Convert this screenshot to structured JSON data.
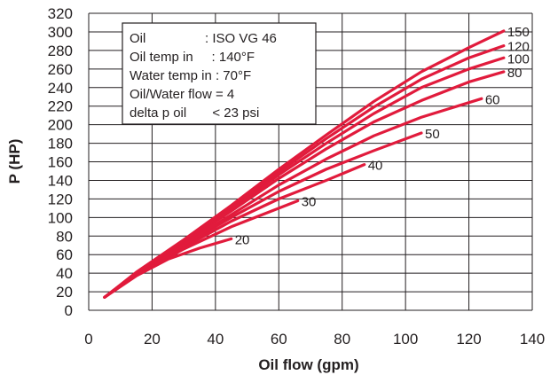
{
  "chart_data": {
    "type": "line",
    "xlabel": "Oil flow (gpm)",
    "ylabel": "P (HP)",
    "xlim": [
      0,
      140
    ],
    "ylim": [
      0,
      320
    ],
    "x_ticks": [
      0,
      20,
      40,
      60,
      80,
      100,
      120,
      140
    ],
    "y_ticks": [
      0,
      20,
      40,
      60,
      80,
      100,
      120,
      140,
      160,
      180,
      200,
      220,
      240,
      260,
      280,
      300,
      320
    ],
    "grid": true,
    "line_color": "#e11b3c",
    "legend_box": {
      "placement": "top-left",
      "lines": [
        "Oil                : ISO VG 46",
        "Oil temp in     : 140°F",
        "Water temp in : 70°F",
        "Oil/Water flow = 4",
        "delta p oil       < 23 psi"
      ]
    },
    "series": [
      {
        "name": "20",
        "x": [
          5,
          15,
          25,
          35,
          45
        ],
        "y": [
          14,
          37,
          55,
          67,
          77
        ]
      },
      {
        "name": "30",
        "x": [
          5,
          15,
          30,
          45,
          60,
          66
        ],
        "y": [
          14,
          38,
          66,
          90,
          110,
          118
        ]
      },
      {
        "name": "40",
        "x": [
          5,
          15,
          30,
          45,
          60,
          75,
          87
        ],
        "y": [
          14,
          38,
          68,
          96,
          120,
          140,
          157
        ]
      },
      {
        "name": "50",
        "x": [
          5,
          15,
          30,
          45,
          60,
          75,
          90,
          105
        ],
        "y": [
          14,
          39,
          70,
          100,
          128,
          152,
          172,
          191
        ]
      },
      {
        "name": "60",
        "x": [
          5,
          15,
          30,
          45,
          60,
          75,
          90,
          105,
          124
        ],
        "y": [
          14,
          39,
          71,
          103,
          135,
          163,
          188,
          208,
          228
        ]
      },
      {
        "name": "80",
        "x": [
          5,
          15,
          30,
          45,
          60,
          75,
          90,
          105,
          120,
          131
        ],
        "y": [
          14,
          40,
          73,
          107,
          142,
          174,
          203,
          226,
          246,
          257
        ]
      },
      {
        "name": "100",
        "x": [
          5,
          15,
          30,
          45,
          60,
          75,
          90,
          105,
          120,
          131
        ],
        "y": [
          14,
          40,
          74,
          109,
          146,
          180,
          212,
          240,
          260,
          272
        ]
      },
      {
        "name": "120",
        "x": [
          5,
          15,
          30,
          45,
          60,
          75,
          90,
          105,
          120,
          131
        ],
        "y": [
          14,
          40,
          75,
          111,
          149,
          185,
          219,
          249,
          272,
          285
        ]
      },
      {
        "name": "150",
        "x": [
          5,
          15,
          30,
          45,
          60,
          75,
          90,
          105,
          120,
          131
        ],
        "y": [
          14,
          41,
          76,
          113,
          152,
          189,
          225,
          257,
          283,
          301
        ]
      }
    ]
  }
}
